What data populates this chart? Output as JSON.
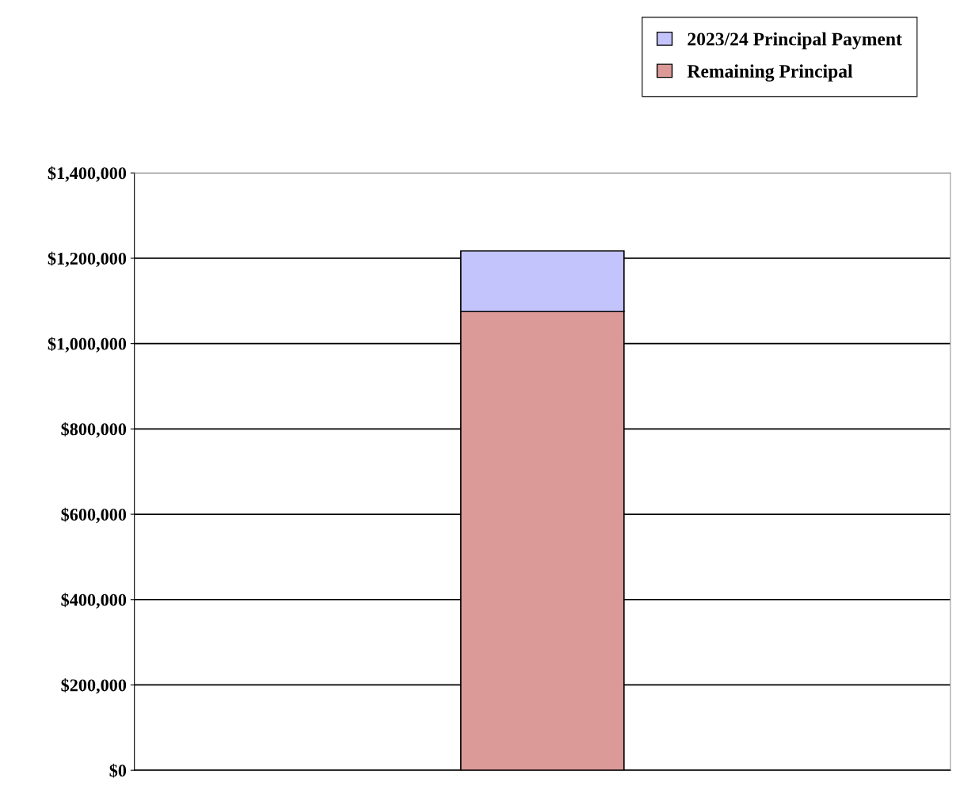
{
  "chart_data": {
    "type": "bar",
    "stacked": true,
    "categories": [
      null
    ],
    "series": [
      {
        "name": "Remaining Principal",
        "color": "#db9a98",
        "values": [
          1075000
        ]
      },
      {
        "name": "2023/24 Principal Payment",
        "color": "#c4c4fc",
        "values": [
          142000
        ]
      }
    ],
    "ylim": [
      0,
      1400000
    ],
    "yticks": [
      {
        "value": 0,
        "label": "$0"
      },
      {
        "value": 200000,
        "label": "$200,000"
      },
      {
        "value": 400000,
        "label": "$400,000"
      },
      {
        "value": 600000,
        "label": "$600,000"
      },
      {
        "value": 800000,
        "label": "$800,000"
      },
      {
        "value": 1000000,
        "label": "$1,000,000"
      },
      {
        "value": 1200000,
        "label": "$1,200,000"
      },
      {
        "value": 1400000,
        "label": "$1,400,000"
      }
    ],
    "grid": "y",
    "legend": "top right"
  }
}
